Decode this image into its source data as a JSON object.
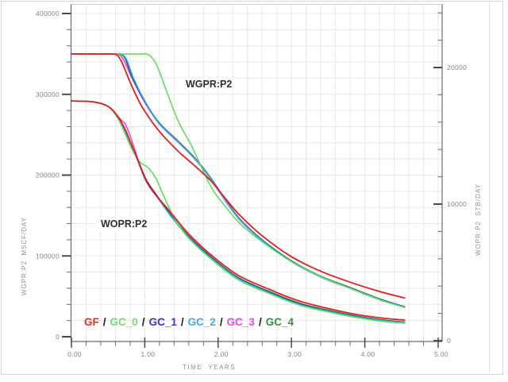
{
  "chart_data": {
    "type": "line",
    "x_axis": {
      "label": "TIME  YEARS",
      "min": 0,
      "max": 5.05,
      "minor_step": 0.2,
      "major_ticks": [
        {
          "value": 0,
          "label": "0.00"
        },
        {
          "value": 1,
          "label": "1.00"
        },
        {
          "value": 2,
          "label": "2.00"
        },
        {
          "value": 3,
          "label": "3.00"
        },
        {
          "value": 4,
          "label": "4.00"
        },
        {
          "value": 5,
          "label": "5.00"
        }
      ]
    },
    "y_left_axis": {
      "label": "WGPR:P2  MSCF/DAY",
      "units": "MSCF/DAY",
      "min": 0,
      "max": 400000,
      "minor_step": 20000,
      "major_ticks": [
        {
          "value": 400000,
          "label": "400000"
        },
        {
          "value": 300000,
          "label": "300000"
        },
        {
          "value": 200000,
          "label": "200000"
        },
        {
          "value": 100000,
          "label": "100000"
        },
        {
          "value": 0,
          "label": "0"
        }
      ]
    },
    "y_right_axis": {
      "label": "WOPR:P2  STB/DAY",
      "units": "STB/DAY",
      "min": 0,
      "max": 24000,
      "minor_step": 2000,
      "major_ticks": [
        {
          "value": 20000,
          "label": "20000"
        },
        {
          "value": 10000,
          "label": "10000"
        },
        {
          "value": 0,
          "label": "0"
        }
      ]
    },
    "annotations": [
      {
        "text": "WGPR:P2"
      },
      {
        "text": "WOPR:P2"
      }
    ],
    "legend": {
      "separator": "/",
      "items": [
        {
          "label": "GF",
          "color": "#ee2a20"
        },
        {
          "label": "GC_0",
          "color": "#74da74"
        },
        {
          "label": "GC_1",
          "color": "#3434d2"
        },
        {
          "label": "GC_2",
          "color": "#45aaee"
        },
        {
          "label": "GC_3",
          "color": "#e946e9"
        },
        {
          "label": "GC_4",
          "color": "#2f9440"
        }
      ]
    },
    "series": [
      {
        "name": "GC_3",
        "group": "WGPR:P2",
        "axis": "left",
        "color": "#e83ee8",
        "width": 1.5,
        "points": [
          [
            0,
            350000
          ],
          [
            0.55,
            350000
          ],
          [
            0.63,
            350000
          ],
          [
            0.71,
            343000
          ],
          [
            0.82,
            321000
          ],
          [
            1.0,
            290000
          ],
          [
            1.2,
            263000
          ],
          [
            1.45,
            241000
          ],
          [
            1.7,
            218000
          ],
          [
            1.9,
            195000
          ],
          [
            2.1,
            168000
          ],
          [
            2.3,
            144000
          ],
          [
            2.6,
            118800
          ],
          [
            3.0,
            92800
          ],
          [
            3.4,
            73800
          ],
          [
            3.8,
            59800
          ],
          [
            4.2,
            45800
          ],
          [
            4.54,
            36400
          ]
        ]
      },
      {
        "name": "GC_4",
        "group": "WGPR:P2",
        "axis": "left",
        "color": "#2c8c38",
        "width": 1.5,
        "points": [
          [
            0,
            350000
          ],
          [
            0.57,
            350000
          ],
          [
            0.65,
            350000
          ],
          [
            0.73,
            344500
          ],
          [
            0.83,
            320500
          ],
          [
            1.0,
            291500
          ],
          [
            1.2,
            264500
          ],
          [
            1.45,
            242500
          ],
          [
            1.7,
            219500
          ],
          [
            1.9,
            196500
          ],
          [
            2.1,
            169500
          ],
          [
            2.3,
            145500
          ],
          [
            2.6,
            120000
          ],
          [
            3.0,
            94000
          ],
          [
            3.4,
            75000
          ],
          [
            3.8,
            61000
          ],
          [
            4.2,
            47000
          ],
          [
            4.54,
            37200
          ]
        ]
      },
      {
        "name": "GC_1",
        "group": "WGPR:P2",
        "axis": "left",
        "color": "#2b2bd0",
        "width": 1.5,
        "points": [
          [
            0,
            350000
          ],
          [
            0.58,
            350000
          ],
          [
            0.66,
            350000
          ],
          [
            0.74,
            344000
          ],
          [
            0.84,
            320000
          ],
          [
            1.0,
            291000
          ],
          [
            1.2,
            264000
          ],
          [
            1.45,
            242000
          ],
          [
            1.7,
            219000
          ],
          [
            1.9,
            196000
          ],
          [
            2.1,
            169000
          ],
          [
            2.3,
            145000
          ],
          [
            2.6,
            119500
          ],
          [
            3.0,
            93500
          ],
          [
            3.4,
            74500
          ],
          [
            3.8,
            60500
          ],
          [
            4.2,
            46500
          ],
          [
            4.54,
            37000
          ]
        ]
      },
      {
        "name": "GC_2",
        "group": "WGPR:P2",
        "axis": "left",
        "color": "#2db4dc",
        "width": 1.5,
        "points": [
          [
            0,
            350000
          ],
          [
            0.59,
            350000
          ],
          [
            0.67,
            350000
          ],
          [
            0.75,
            343500
          ],
          [
            0.85,
            319500
          ],
          [
            1.01,
            290500
          ],
          [
            1.2,
            263500
          ],
          [
            1.45,
            241500
          ],
          [
            1.7,
            218500
          ],
          [
            1.9,
            195500
          ],
          [
            2.1,
            168500
          ],
          [
            2.3,
            144500
          ],
          [
            2.6,
            119000
          ],
          [
            3.0,
            93000
          ],
          [
            3.4,
            74000
          ],
          [
            3.8,
            60000
          ],
          [
            4.2,
            46000
          ],
          [
            4.54,
            36600
          ]
        ]
      },
      {
        "name": "GC_0",
        "group": "WGPR:P2",
        "axis": "left",
        "color": "#5fdc5f",
        "width": 1.6,
        "points": [
          [
            0,
            350000
          ],
          [
            0.9,
            350000
          ],
          [
            1.02,
            350000
          ],
          [
            1.1,
            345000
          ],
          [
            1.19,
            330000
          ],
          [
            1.44,
            270000
          ],
          [
            1.65,
            234000
          ],
          [
            1.9,
            186000
          ],
          [
            2.1,
            161000
          ],
          [
            2.3,
            140000
          ],
          [
            2.6,
            117500
          ],
          [
            3.0,
            93000
          ],
          [
            3.4,
            74500
          ],
          [
            3.8,
            60000
          ],
          [
            4.2,
            46000
          ],
          [
            4.54,
            36200
          ]
        ]
      },
      {
        "name": "GF",
        "group": "WGPR:P2",
        "axis": "left",
        "color": "#e51d1d",
        "width": 1.8,
        "points": [
          [
            0,
            350000
          ],
          [
            0.45,
            350000
          ],
          [
            0.55,
            350000
          ],
          [
            0.63,
            348000
          ],
          [
            0.7,
            337000
          ],
          [
            0.8,
            315000
          ],
          [
            0.9,
            295000
          ],
          [
            1.0,
            279000
          ],
          [
            1.2,
            254000
          ],
          [
            1.45,
            230000
          ],
          [
            1.7,
            210000
          ],
          [
            1.9,
            193000
          ],
          [
            2.1,
            171000
          ],
          [
            2.3,
            150000
          ],
          [
            2.6,
            125000
          ],
          [
            3.0,
            99000
          ],
          [
            3.4,
            81000
          ],
          [
            3.8,
            67500
          ],
          [
            4.2,
            56000
          ],
          [
            4.54,
            48000
          ]
        ]
      },
      {
        "name": "GC_3",
        "group": "WOPR:P2",
        "axis": "right",
        "color": "#e83ee8",
        "width": 1.5,
        "points": [
          [
            0,
            17550
          ],
          [
            0.3,
            17480
          ],
          [
            0.5,
            17150
          ],
          [
            0.6,
            16650
          ],
          [
            0.68,
            16150
          ],
          [
            0.74,
            15800
          ],
          [
            0.82,
            14700
          ],
          [
            0.92,
            13100
          ],
          [
            1.02,
            11800
          ],
          [
            1.15,
            10720
          ],
          [
            1.35,
            9220
          ],
          [
            1.6,
            7620
          ],
          [
            1.89,
            6170
          ],
          [
            2.27,
            4620
          ],
          [
            2.7,
            3570
          ],
          [
            3.14,
            2670
          ],
          [
            3.78,
            1900
          ],
          [
            4.2,
            1530
          ],
          [
            4.54,
            1360
          ]
        ]
      },
      {
        "name": "GC_4",
        "group": "WOPR:P2",
        "axis": "right",
        "color": "#2c8c38",
        "width": 1.5,
        "points": [
          [
            0,
            17550
          ],
          [
            0.3,
            17480
          ],
          [
            0.5,
            17150
          ],
          [
            0.63,
            16400
          ],
          [
            0.73,
            15400
          ],
          [
            0.82,
            14350
          ],
          [
            0.92,
            13050
          ],
          [
            1.02,
            11800
          ],
          [
            1.15,
            10750
          ],
          [
            1.35,
            9250
          ],
          [
            1.6,
            7650
          ],
          [
            1.89,
            6200
          ],
          [
            2.27,
            4650
          ],
          [
            2.7,
            3600
          ],
          [
            3.14,
            2700
          ],
          [
            3.78,
            1920
          ],
          [
            4.2,
            1550
          ],
          [
            4.54,
            1370
          ]
        ]
      },
      {
        "name": "GC_1",
        "group": "WOPR:P2",
        "axis": "right",
        "color": "#2b2bd0",
        "width": 1.5,
        "points": [
          [
            0,
            17550
          ],
          [
            0.3,
            17480
          ],
          [
            0.5,
            17150
          ],
          [
            0.63,
            16350
          ],
          [
            0.73,
            15350
          ],
          [
            0.82,
            14300
          ],
          [
            0.92,
            13000
          ],
          [
            1.02,
            11750
          ],
          [
            1.15,
            10700
          ],
          [
            1.35,
            9200
          ],
          [
            1.6,
            7600
          ],
          [
            1.89,
            6150
          ],
          [
            2.27,
            4600
          ],
          [
            2.7,
            3550
          ],
          [
            3.14,
            2650
          ],
          [
            3.78,
            1880
          ],
          [
            4.2,
            1520
          ],
          [
            4.54,
            1350
          ]
        ]
      },
      {
        "name": "GC_2",
        "group": "WOPR:P2",
        "axis": "right",
        "color": "#2db4dc",
        "width": 1.5,
        "points": [
          [
            0,
            17550
          ],
          [
            0.3,
            17480
          ],
          [
            0.5,
            17150
          ],
          [
            0.63,
            16300
          ],
          [
            0.73,
            15300
          ],
          [
            0.82,
            14250
          ],
          [
            0.92,
            12950
          ],
          [
            1.02,
            11700
          ],
          [
            1.15,
            10650
          ],
          [
            1.35,
            9150
          ],
          [
            1.6,
            7550
          ],
          [
            1.89,
            6100
          ],
          [
            2.27,
            4550
          ],
          [
            2.7,
            3500
          ],
          [
            3.14,
            2600
          ],
          [
            3.78,
            1850
          ],
          [
            4.2,
            1500
          ],
          [
            4.54,
            1330
          ]
        ]
      },
      {
        "name": "GC_0",
        "group": "WOPR:P2",
        "axis": "right",
        "color": "#5fdc5f",
        "width": 1.6,
        "points": [
          [
            0,
            17550
          ],
          [
            0.3,
            17480
          ],
          [
            0.5,
            17150
          ],
          [
            0.62,
            16400
          ],
          [
            0.72,
            15300
          ],
          [
            0.8,
            14300
          ],
          [
            0.88,
            13500
          ],
          [
            0.95,
            13000
          ],
          [
            1.05,
            12650
          ],
          [
            1.15,
            11900
          ],
          [
            1.25,
            10700
          ],
          [
            1.4,
            9000
          ],
          [
            1.6,
            7500
          ],
          [
            1.89,
            6050
          ],
          [
            2.27,
            4480
          ],
          [
            2.7,
            3450
          ],
          [
            3.14,
            2560
          ],
          [
            3.78,
            1800
          ],
          [
            4.2,
            1440
          ],
          [
            4.54,
            1280
          ]
        ]
      },
      {
        "name": "GF",
        "group": "WOPR:P2",
        "axis": "right",
        "color": "#e51d1d",
        "width": 1.8,
        "points": [
          [
            0,
            17550
          ],
          [
            0.3,
            17480
          ],
          [
            0.5,
            17150
          ],
          [
            0.62,
            16500
          ],
          [
            0.72,
            15600
          ],
          [
            0.8,
            14600
          ],
          [
            0.9,
            13300
          ],
          [
            1.0,
            11900
          ],
          [
            1.1,
            11000
          ],
          [
            1.33,
            9540
          ],
          [
            1.6,
            7800
          ],
          [
            1.89,
            6340
          ],
          [
            2.27,
            4800
          ],
          [
            2.7,
            3750
          ],
          [
            3.14,
            2850
          ],
          [
            3.78,
            2030
          ],
          [
            4.2,
            1680
          ],
          [
            4.54,
            1510
          ]
        ]
      }
    ]
  }
}
